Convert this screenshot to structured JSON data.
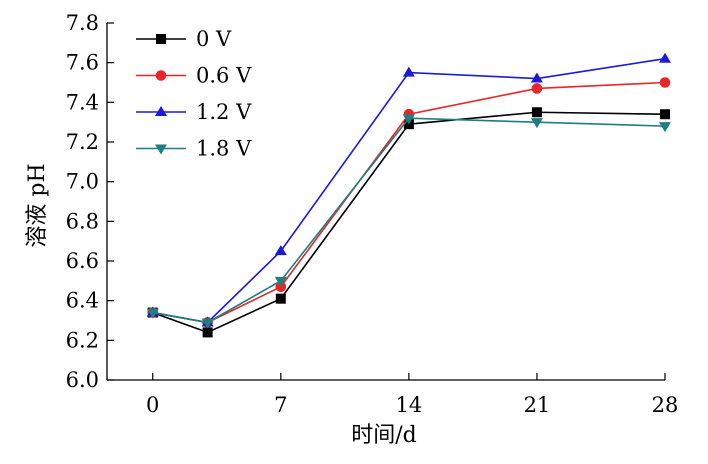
{
  "chart_data": {
    "type": "line",
    "title": "",
    "xlabel": "时间/d",
    "ylabel": "溶液 pH",
    "x": [
      0,
      3,
      7,
      14,
      21,
      28
    ],
    "xticks": [
      0,
      7,
      14,
      21,
      28
    ],
    "xtick_labels": [
      "0",
      "7",
      "14",
      "21",
      "28"
    ],
    "yticks": [
      6.0,
      6.2,
      6.4,
      6.6,
      6.8,
      7.0,
      7.2,
      7.4,
      7.6,
      7.8
    ],
    "ytick_labels": [
      "6.0",
      "6.2",
      "6.4",
      "6.6",
      "6.8",
      "7.0",
      "7.2",
      "7.4",
      "7.6",
      "7.8"
    ],
    "xlim": [
      -2.5,
      28
    ],
    "ylim": [
      6.0,
      7.8
    ],
    "grid": false,
    "legend_position": "top-left",
    "series": [
      {
        "name": "0 V",
        "color": "#000000",
        "marker": "square",
        "values": [
          6.34,
          6.24,
          6.41,
          7.29,
          7.35,
          7.34
        ]
      },
      {
        "name": "0.6 V",
        "color": "#e8262a",
        "marker": "circle",
        "values": [
          6.34,
          6.29,
          6.47,
          7.34,
          7.47,
          7.5
        ]
      },
      {
        "name": "1.2 V",
        "color": "#1a1adb",
        "marker": "triangle-up",
        "values": [
          6.34,
          6.29,
          6.65,
          7.55,
          7.52,
          7.62
        ]
      },
      {
        "name": "1.8 V",
        "color": "#1f7f7f",
        "marker": "triangle-down",
        "values": [
          6.34,
          6.29,
          6.5,
          7.32,
          7.3,
          7.28
        ]
      }
    ]
  }
}
